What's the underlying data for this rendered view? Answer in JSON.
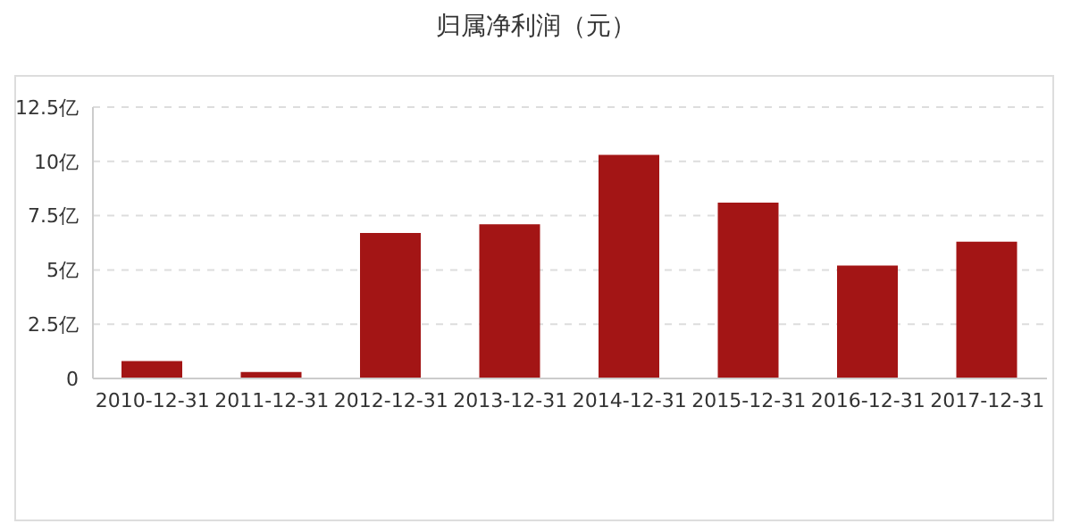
{
  "chart_data": {
    "type": "bar",
    "title": "归属净利润（元）",
    "categories": [
      "2010-12-31",
      "2011-12-31",
      "2012-12-31",
      "2013-12-31",
      "2014-12-31",
      "2015-12-31",
      "2016-12-31",
      "2017-12-31"
    ],
    "values": [
      0.8,
      0.3,
      6.7,
      7.1,
      10.3,
      8.1,
      5.2,
      6.3
    ],
    "color": "#a31515",
    "ylim": [
      0,
      12.5
    ],
    "yticks": [
      {
        "value": 0,
        "label": "0"
      },
      {
        "value": 2.5,
        "label": "2.5亿"
      },
      {
        "value": 5,
        "label": "5亿"
      },
      {
        "value": 7.5,
        "label": "7.5亿"
      },
      {
        "value": 10,
        "label": "10亿"
      },
      {
        "value": 12.5,
        "label": "12.5亿"
      }
    ],
    "grid": "y"
  }
}
